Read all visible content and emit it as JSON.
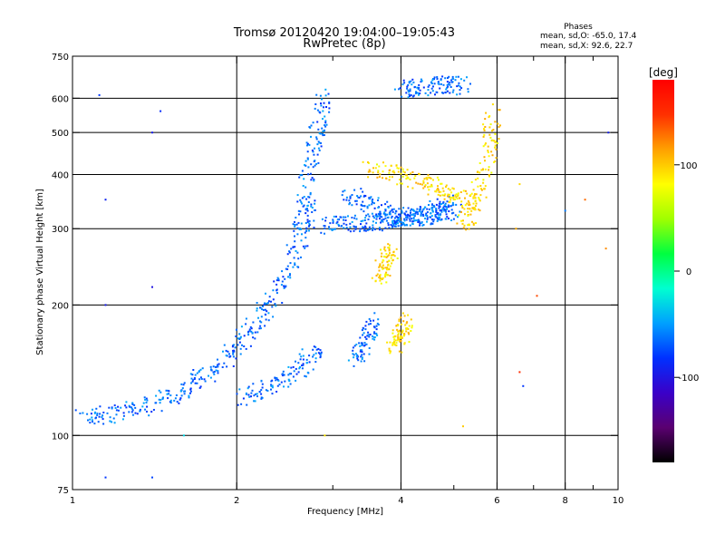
{
  "chart_data": {
    "type": "scatter",
    "title": "Tromsø 20120420 19:04:00–19:05:43",
    "subtitle": "RwPretec (8p)",
    "stats": {
      "heading": "Phases",
      "line_o": "mean, sd,O: -65.0, 17.4",
      "line_x": "mean, sd,X:  92.6, 22.7"
    },
    "xlabel": "Frequency [MHz]",
    "ylabel": "Stationary phase Virtual Height [km]",
    "x_scale": "log",
    "y_scale": "log",
    "xlim": [
      1,
      10
    ],
    "ylim": [
      75,
      750
    ],
    "x_ticks": [
      1,
      2,
      4,
      6,
      8,
      10
    ],
    "x_minor_ticks": [
      3,
      5,
      7,
      9
    ],
    "y_ticks": [
      75,
      100,
      200,
      300,
      400,
      500,
      600,
      750
    ],
    "grid": true,
    "colorbar": {
      "label": "[deg]",
      "range": [
        -180,
        180
      ],
      "ticks": [
        100,
        0,
        -100
      ],
      "colormap": [
        "#000000",
        "#5a0070",
        "#3a00c8",
        "#0030ff",
        "#00a0ff",
        "#00ffd0",
        "#00ff40",
        "#a0ff00",
        "#ffff00",
        "#ffa000",
        "#ff3000",
        "#ff0000"
      ]
    },
    "series": [
      {
        "kind": "ordinary",
        "color_value": -65,
        "traces": [
          {
            "f": [
              1.05,
              1.2,
              1.4,
              1.6,
              1.8,
              2.0,
              2.2,
              2.4,
              2.6,
              2.75
            ],
            "h": [
              110,
              112,
              118,
              128,
              140,
              160,
              185,
              220,
              280,
              340
            ]
          },
          {
            "f": [
              2.05,
              2.3,
              2.6,
              2.85
            ],
            "h": [
              122,
              130,
              142,
              160
            ]
          },
          {
            "f": [
              2.6,
              2.7,
              2.8,
              2.9
            ],
            "h": [
              300,
              400,
              500,
              610
            ]
          },
          {
            "f": [
              2.9,
              3.2,
              3.6,
              3.9,
              4.2,
              4.6,
              5.0
            ],
            "h": [
              305,
              308,
              310,
              315,
              320,
              330,
              345
            ]
          },
          {
            "f": [
              3.2,
              3.5,
              3.8,
              4.2,
              4.6,
              5.0
            ],
            "h": [
              360,
              340,
              325,
              318,
              320,
              330
            ]
          },
          {
            "f": [
              4.0,
              4.4,
              4.8,
              5.2
            ],
            "h": [
              630,
              638,
              645,
              640
            ]
          },
          {
            "f": [
              3.3,
              3.45,
              3.6
            ],
            "h": [
              150,
              165,
              185
            ]
          }
        ]
      },
      {
        "kind": "extraordinary",
        "color_value": 93,
        "traces": [
          {
            "f": [
              3.5,
              4.0,
              4.5,
              5.0,
              5.5
            ],
            "h": [
              410,
              400,
              380,
              360,
              345
            ]
          },
          {
            "f": [
              5.2,
              5.5,
              5.8,
              5.9
            ],
            "h": [
              300,
              350,
              450,
              560
            ]
          },
          {
            "f": [
              3.65,
              3.75,
              3.85
            ],
            "h": [
              230,
              250,
              270
            ]
          },
          {
            "f": [
              3.9,
              4.0,
              4.1
            ],
            "h": [
              160,
              170,
              185
            ]
          }
        ]
      }
    ],
    "isolated_points": [
      {
        "f": 1.12,
        "h": 610,
        "c": -80
      },
      {
        "f": 1.15,
        "h": 350,
        "c": -90
      },
      {
        "f": 1.4,
        "h": 500,
        "c": -95
      },
      {
        "f": 1.4,
        "h": 220,
        "c": -100
      },
      {
        "f": 1.45,
        "h": 560,
        "c": -85
      },
      {
        "f": 1.15,
        "h": 200,
        "c": -95
      },
      {
        "f": 1.15,
        "h": 80,
        "c": -80
      },
      {
        "f": 1.4,
        "h": 80,
        "c": -75
      },
      {
        "f": 6.5,
        "h": 300,
        "c": 110
      },
      {
        "f": 6.6,
        "h": 380,
        "c": 95
      },
      {
        "f": 7.1,
        "h": 210,
        "c": 140
      },
      {
        "f": 8.0,
        "h": 330,
        "c": -60
      },
      {
        "f": 8.7,
        "h": 350,
        "c": 130
      },
      {
        "f": 9.5,
        "h": 270,
        "c": 120
      },
      {
        "f": 9.6,
        "h": 500,
        "c": -95
      },
      {
        "f": 6.6,
        "h": 140,
        "c": 150
      },
      {
        "f": 6.7,
        "h": 130,
        "c": -80
      },
      {
        "f": 5.2,
        "h": 105,
        "c": 100
      },
      {
        "f": 1.6,
        "h": 100,
        "c": -30
      },
      {
        "f": 2.9,
        "h": 100,
        "c": 90
      }
    ]
  }
}
